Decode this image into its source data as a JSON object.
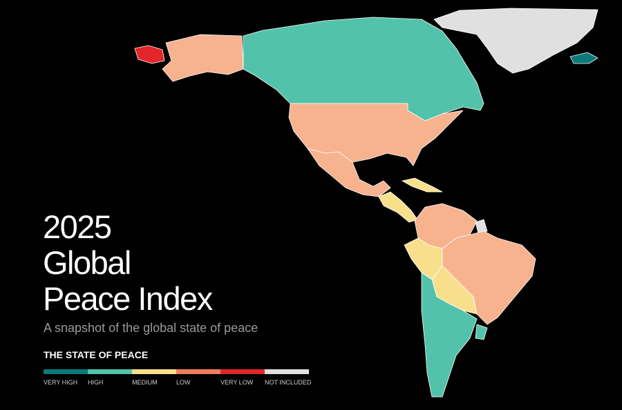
{
  "header": {
    "title_lines": [
      "2025",
      "Global",
      "Peace Index"
    ],
    "subtitle": "A snapshot of the global state of peace"
  },
  "legend": {
    "title": "THE STATE OF PEACE",
    "items": [
      {
        "label": "VERY HIGH",
        "color": "#0b7a78"
      },
      {
        "label": "HIGH",
        "color": "#52c3aa"
      },
      {
        "label": "MEDIUM",
        "color": "#f8df8c"
      },
      {
        "label": "LOW",
        "color": "#ef7d5a"
      },
      {
        "label": "VERY LOW",
        "color": "#e3262b"
      },
      {
        "label": "NOT INCLUDED",
        "color": "#e0e0e0"
      }
    ]
  }
}
